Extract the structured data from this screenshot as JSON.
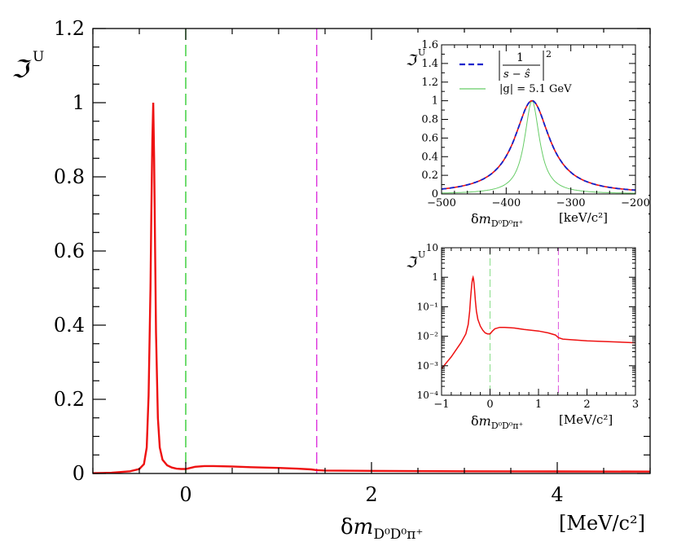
{
  "chart_data": [
    {
      "type": "line",
      "title": "",
      "xlabel": "δm_{D⁰D⁰π⁺}",
      "xunit": "[MeV/c²]",
      "ylabel": "ℑU",
      "xlim": [
        -1,
        5
      ],
      "ylim": [
        0,
        1.2
      ],
      "xticks": [
        "0",
        "2",
        "4"
      ],
      "yticks": [
        "0",
        "0.2",
        "0.4",
        "0.6",
        "0.8",
        "1",
        "1.2"
      ],
      "vlines": [
        {
          "x": 0,
          "color": "#33cc33",
          "style": "dashed"
        },
        {
          "x": 1.41,
          "color": "#dd33dd",
          "style": "dashed"
        }
      ],
      "series": [
        {
          "name": "ℑU",
          "color": "#ee1111",
          "x": [
            -1.0,
            -0.8,
            -0.6,
            -0.5,
            -0.45,
            -0.42,
            -0.4,
            -0.38,
            -0.37,
            -0.36,
            -0.35,
            -0.34,
            -0.33,
            -0.32,
            -0.3,
            -0.28,
            -0.25,
            -0.2,
            -0.15,
            -0.1,
            -0.05,
            0.0,
            0.05,
            0.1,
            0.2,
            0.3,
            0.5,
            0.7,
            1.0,
            1.2,
            1.35,
            1.41,
            1.5,
            2.0,
            3.0,
            4.0,
            5.0
          ],
          "values": [
            0.0008,
            0.002,
            0.006,
            0.012,
            0.025,
            0.07,
            0.21,
            0.5,
            0.71,
            0.9,
            1.0,
            0.85,
            0.6,
            0.38,
            0.15,
            0.07,
            0.037,
            0.022,
            0.016,
            0.013,
            0.012,
            0.012,
            0.015,
            0.018,
            0.02,
            0.02,
            0.019,
            0.017,
            0.015,
            0.013,
            0.011,
            0.009,
            0.008,
            0.007,
            0.006,
            0.0055,
            0.005
          ]
        }
      ]
    },
    {
      "type": "line",
      "title": "",
      "xlabel": "δm_{D⁰D⁰π⁺}",
      "xunit": "[keV/c²]",
      "ylabel": "ℑU",
      "xlim": [
        -500,
        -200
      ],
      "ylim": [
        0,
        1.6
      ],
      "xticks": [
        "−500",
        "−400",
        "−300",
        "−200"
      ],
      "yticks": [
        "0",
        "0.2",
        "0.4",
        "0.6",
        "0.8",
        "1",
        "1.2",
        "1.4",
        "1.6"
      ],
      "legend": {
        "entries": [
          "|1/(s − ŝ)|²",
          "|g| = 5.1 GeV"
        ],
        "first_parts": [
          "1",
          "s − ŝ",
          "2"
        ],
        "second_label": "|g| = 5.1 GeV"
      },
      "series": [
        {
          "name": "ℑU",
          "color": "#ee1111",
          "center": -360,
          "halfwidth": 33
        },
        {
          "name": "|1/(s − ŝ)|²",
          "color": "#1122cc",
          "style": "dashed",
          "center": -360,
          "halfwidth": 33
        },
        {
          "name": "|g| = 5.1 GeV",
          "color": "#66cc66",
          "center": -360,
          "halfwidth": 14
        }
      ]
    },
    {
      "type": "line",
      "title": "",
      "xlabel": "δm_{D⁰D⁰π⁺}",
      "xunit": "[MeV/c²]",
      "ylabel": "ℑU",
      "yscale": "log",
      "xlim": [
        -1,
        3
      ],
      "ylim": [
        0.0001,
        10
      ],
      "xticks": [
        "−1",
        "0",
        "1",
        "2",
        "3"
      ],
      "yticks": [
        "10⁻⁴",
        "10⁻³",
        "10⁻²",
        "10⁻¹",
        "1",
        "10"
      ],
      "vlines": [
        {
          "x": 0,
          "color": "#88dd88",
          "style": "dashed"
        },
        {
          "x": 1.41,
          "color": "#dd55dd",
          "style": "dashed"
        }
      ]
    }
  ]
}
